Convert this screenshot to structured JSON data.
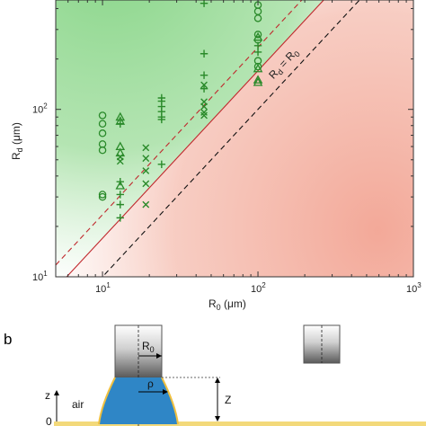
{
  "chart_data": {
    "type": "scatter",
    "x_scale": "log",
    "y_scale": "log",
    "xlim": [
      5,
      1000
    ],
    "ylim": [
      10,
      450
    ],
    "xlabel_main": "R",
    "xlabel_sub": "0",
    "xlabel_unit": " (μm)",
    "ylabel_main": "R",
    "ylabel_sub": "d",
    "ylabel_unit": " (μm)",
    "x_ticks": [
      {
        "value": 10,
        "base": "10",
        "exp": "1"
      },
      {
        "value": 100,
        "base": "10",
        "exp": "2"
      },
      {
        "value": 1000,
        "base": "10",
        "exp": "3"
      }
    ],
    "y_ticks": [
      {
        "value": 10,
        "base": "10",
        "exp": "1"
      },
      {
        "value": 100,
        "base": "10",
        "exp": "2"
      }
    ],
    "region_colors": {
      "upper": "#7fd27f",
      "lower": "#f2a493"
    },
    "marker_color": "#2a8a2a",
    "lines": [
      {
        "kind": "identity",
        "label_main": "R",
        "label_sub1": "d",
        "label_eq": " = R",
        "label_sub2": "0",
        "factor": 1.0,
        "color": "#111111",
        "dash": "6,4"
      },
      {
        "kind": "solid",
        "factor": 1.7,
        "color": "#c0282d",
        "dash": ""
      },
      {
        "kind": "dashed",
        "factor": 2.35,
        "color": "#c0282d",
        "dash": "6,4"
      }
    ],
    "series": [
      {
        "marker": "circle",
        "points": [
          [
            10,
            92
          ],
          [
            10,
            82
          ],
          [
            10,
            72
          ],
          [
            10,
            62
          ],
          [
            10,
            57
          ],
          [
            10,
            31
          ],
          [
            10,
            30
          ],
          [
            100,
            420
          ],
          [
            100,
            385
          ],
          [
            100,
            350
          ],
          [
            100,
            280
          ],
          [
            100,
            260
          ],
          [
            100,
            195
          ],
          [
            100,
            180
          ]
        ]
      },
      {
        "marker": "triangle",
        "points": [
          [
            13,
            90
          ],
          [
            13,
            85
          ],
          [
            13,
            60
          ],
          [
            13,
            55
          ],
          [
            13,
            35
          ],
          [
            100,
            270
          ],
          [
            100,
            175
          ],
          [
            100,
            150
          ],
          [
            100,
            145
          ]
        ]
      },
      {
        "marker": "plus",
        "points": [
          [
            13,
            82
          ],
          [
            13,
            37
          ],
          [
            13,
            31
          ],
          [
            13,
            27
          ],
          [
            13,
            22.5
          ],
          [
            24,
            117
          ],
          [
            24,
            112
          ],
          [
            24,
            104
          ],
          [
            24,
            97
          ],
          [
            24,
            90
          ],
          [
            24,
            87
          ],
          [
            24,
            47
          ],
          [
            45,
            430
          ],
          [
            45,
            215
          ],
          [
            45,
            160
          ],
          [
            45,
            133
          ],
          [
            100,
            240
          ],
          [
            100,
            220
          ]
        ]
      },
      {
        "marker": "x",
        "points": [
          [
            13,
            52
          ],
          [
            13,
            49
          ],
          [
            19,
            59
          ],
          [
            19,
            51
          ],
          [
            19,
            43
          ],
          [
            19,
            36
          ],
          [
            19,
            27
          ],
          [
            45,
            140
          ],
          [
            45,
            111
          ],
          [
            45,
            104
          ],
          [
            45,
            96
          ],
          [
            45,
            92
          ]
        ]
      }
    ]
  },
  "schematic": {
    "panel_label": "b",
    "r0_label_main": "R",
    "r0_label_sub": "0",
    "rho_label": "ρ",
    "z_big_label": "Z",
    "z_axis_label": "z",
    "air_label": "air",
    "zero_label": "0",
    "colors": {
      "liquid": "#2f86c6",
      "interface": "#f0c040",
      "substrate": "#f3d97a",
      "nozzle_dark": "#7a7a7a"
    }
  }
}
